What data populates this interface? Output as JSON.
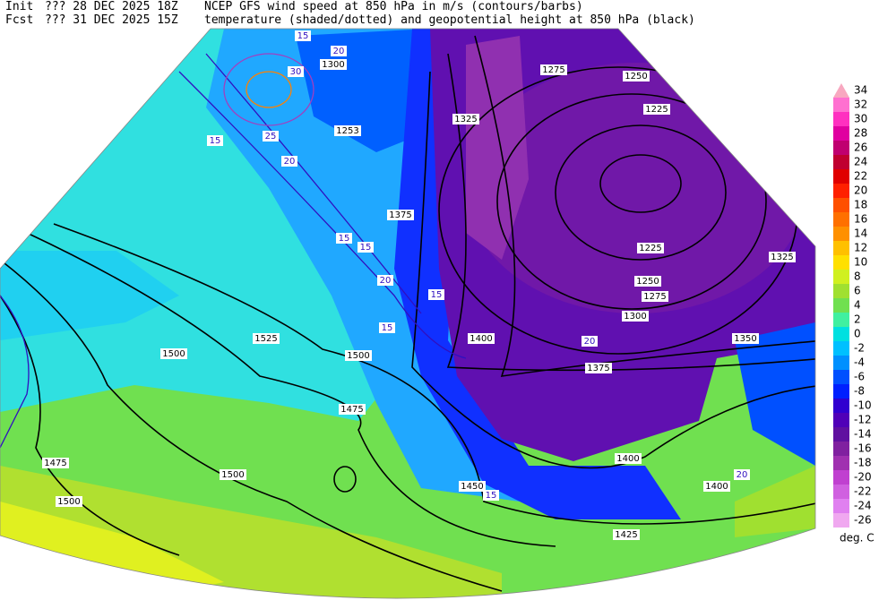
{
  "header": {
    "init_label": "Init",
    "init": "??? 28 DEC 2025 18Z",
    "fcst_label": "Fcst",
    "fcst": "??? 31 DEC 2025 15Z",
    "title_line1": "NCEP GFS wind speed at 850 hPa in m/s (contours/barbs)",
    "title_line2": "temperature (shaded/dotted) and geopotential height at 850 hPa (black)"
  },
  "colorbar": {
    "ticks": [
      34,
      32,
      30,
      28,
      26,
      24,
      22,
      20,
      18,
      16,
      14,
      12,
      10,
      8,
      6,
      4,
      2,
      0,
      -2,
      -4,
      -6,
      -8,
      -10,
      -12,
      -14,
      -16,
      -18,
      -20,
      -22,
      -24,
      -26
    ],
    "colors": [
      "#f8a8c0",
      "#ff70d0",
      "#ff30c0",
      "#e000a0",
      "#c00070",
      "#c00030",
      "#e00000",
      "#ff2000",
      "#ff5000",
      "#ff7000",
      "#ff9000",
      "#ffc000",
      "#ffe000",
      "#d0f020",
      "#a0e030",
      "#70e050",
      "#40f0a0",
      "#00e0e0",
      "#00c0ff",
      "#0090ff",
      "#0050ff",
      "#0020ff",
      "#3000d0",
      "#5000b8",
      "#6010a0",
      "#8020a0",
      "#a030b0",
      "#c040d0",
      "#d060e0",
      "#e080f0",
      "#f0a8f0"
    ],
    "unit": "deg. C"
  },
  "map": {
    "height_labels": [
      "1225",
      "1250",
      "1275",
      "1225",
      "1250",
      "1275",
      "1300",
      "1325",
      "1350",
      "1375",
      "1400",
      "1375",
      "1400",
      "1400",
      "1425",
      "1450",
      "1475",
      "1500",
      "1500",
      "1525",
      "1500",
      "1475",
      "1500",
      "1325",
      "1300",
      "1253"
    ],
    "wind_labels": [
      "15",
      "20",
      "25",
      "30",
      "15",
      "20",
      "15",
      "15",
      "20",
      "15",
      "15",
      "20",
      "15",
      "20"
    ]
  }
}
